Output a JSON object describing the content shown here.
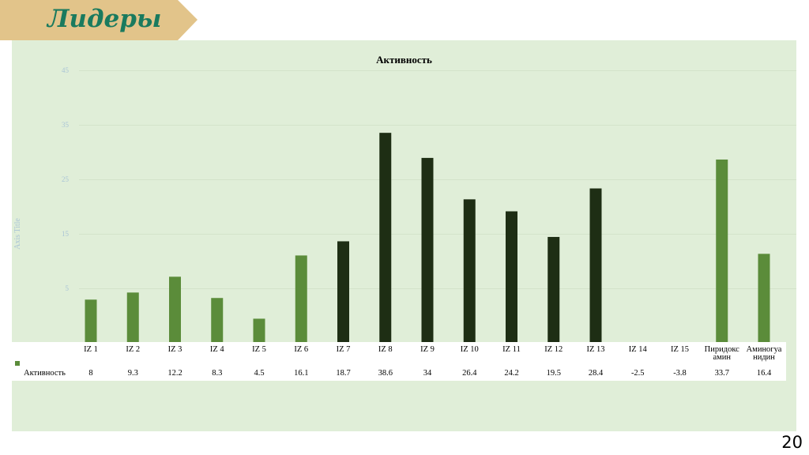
{
  "slide": {
    "title": "Лидеры",
    "page_number": "20"
  },
  "colors": {
    "banner": "#e2c48a",
    "title_text": "#1a7a5e",
    "chart_background": "#e0eed8",
    "bar_light": "#5b8c3a",
    "bar_dark": "#1e2e14"
  },
  "chart_data": {
    "type": "bar",
    "title": "Активность",
    "ylabel": "Axis Title",
    "xlabel": "",
    "ylim": [
      0,
      50
    ],
    "yticks": [
      "5",
      "15",
      "25",
      "35",
      "45"
    ],
    "grid": true,
    "legend": "data-table",
    "categories": [
      "IZ 1",
      "IZ 2",
      "IZ 3",
      "IZ 4",
      "IZ 5",
      "IZ 6",
      "IZ 7",
      "IZ 8",
      "IZ 9",
      "IZ 10",
      "IZ 11",
      "IZ 12",
      "IZ 13",
      "IZ 14",
      "IZ 15",
      "Пиридоксамин",
      "Аминогуанидин"
    ],
    "category_labels": [
      [
        "IZ 1"
      ],
      [
        "IZ 2"
      ],
      [
        "IZ 3"
      ],
      [
        "IZ 4"
      ],
      [
        "IZ 5"
      ],
      [
        "IZ 6"
      ],
      [
        "IZ 7"
      ],
      [
        "IZ 8"
      ],
      [
        "IZ 9"
      ],
      [
        "IZ 10"
      ],
      [
        "IZ 11"
      ],
      [
        "IZ 12"
      ],
      [
        "IZ 13"
      ],
      [
        "IZ 14"
      ],
      [
        "IZ 15"
      ],
      [
        "Пиридокс",
        "амин"
      ],
      [
        "Аминогуа",
        "нидин"
      ]
    ],
    "series": [
      {
        "name": "Активность",
        "values": [
          8,
          9.3,
          12.2,
          8.3,
          4.5,
          16.1,
          18.7,
          38.6,
          34,
          26.4,
          24.2,
          19.5,
          28.4,
          -2.5,
          -3.8,
          33.7,
          16.4
        ],
        "value_labels": [
          "8",
          "9.3",
          "12.2",
          "8.3",
          "4.5",
          "16.1",
          "18.7",
          "38.6",
          "34",
          "26.4",
          "24.2",
          "19.5",
          "28.4",
          "-2.5",
          "-3.8",
          "33.7",
          "16.4"
        ]
      }
    ],
    "bar_colors": [
      "light",
      "light",
      "light",
      "light",
      "light",
      "light",
      "dark",
      "dark",
      "dark",
      "dark",
      "dark",
      "dark",
      "dark",
      "dark",
      "dark",
      "light",
      "light"
    ]
  }
}
